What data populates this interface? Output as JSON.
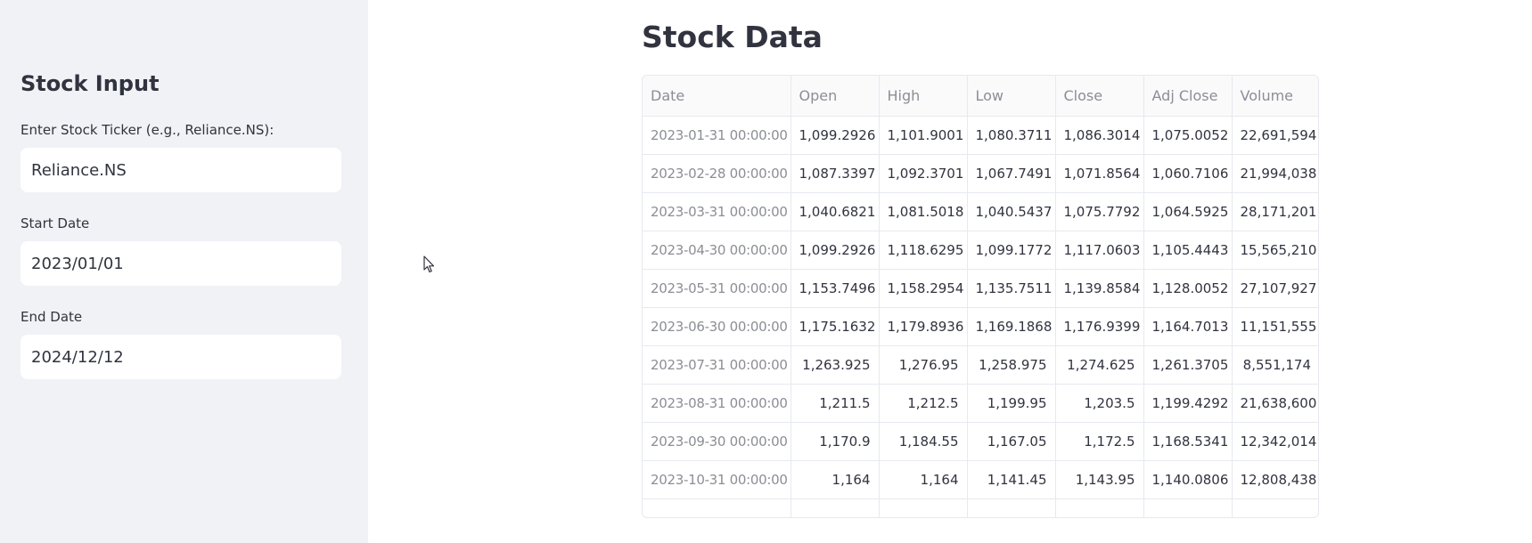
{
  "sidebar": {
    "title": "Stock Input",
    "ticker_label": "Enter Stock Ticker (e.g., Reliance.NS):",
    "ticker_value": "Reliance.NS",
    "start_label": "Start Date",
    "start_value": "2023/01/01",
    "end_label": "End Date",
    "end_value": "2024/12/12"
  },
  "main": {
    "title": "Stock Data"
  },
  "table": {
    "columns": [
      "Date",
      "Open",
      "High",
      "Low",
      "Close",
      "Adj Close",
      "Volume"
    ],
    "rows": [
      [
        "2023-01-31 00:00:00",
        "1,099.2926",
        "1,101.9001",
        "1,080.3711",
        "1,086.3014",
        "1,075.0052",
        "22,691,594"
      ],
      [
        "2023-02-28 00:00:00",
        "1,087.3397",
        "1,092.3701",
        "1,067.7491",
        "1,071.8564",
        "1,060.7106",
        "21,994,038"
      ],
      [
        "2023-03-31 00:00:00",
        "1,040.6821",
        "1,081.5018",
        "1,040.5437",
        "1,075.7792",
        "1,064.5925",
        "28,171,201"
      ],
      [
        "2023-04-30 00:00:00",
        "1,099.2926",
        "1,118.6295",
        "1,099.1772",
        "1,117.0603",
        "1,105.4443",
        "15,565,210"
      ],
      [
        "2023-05-31 00:00:00",
        "1,153.7496",
        "1,158.2954",
        "1,135.7511",
        "1,139.8584",
        "1,128.0052",
        "27,107,927"
      ],
      [
        "2023-06-30 00:00:00",
        "1,175.1632",
        "1,179.8936",
        "1,169.1868",
        "1,176.9399",
        "1,164.7013",
        "11,151,555"
      ],
      [
        "2023-07-31 00:00:00",
        "1,263.925",
        "1,276.95",
        "1,258.975",
        "1,274.625",
        "1,261.3705",
        "8,551,174"
      ],
      [
        "2023-08-31 00:00:00",
        "1,211.5",
        "1,212.5",
        "1,199.95",
        "1,203.5",
        "1,199.4292",
        "21,638,600"
      ],
      [
        "2023-09-30 00:00:00",
        "1,170.9",
        "1,184.55",
        "1,167.05",
        "1,172.5",
        "1,168.5341",
        "12,342,014"
      ],
      [
        "2023-10-31 00:00:00",
        "1,164",
        "1,164",
        "1,141.45",
        "1,143.95",
        "1,140.0806",
        "12,808,438"
      ],
      [
        "",
        "",
        "",
        "",
        "",
        "",
        ""
      ]
    ]
  },
  "icons": {
    "cursor": "mouse-pointer-icon"
  }
}
